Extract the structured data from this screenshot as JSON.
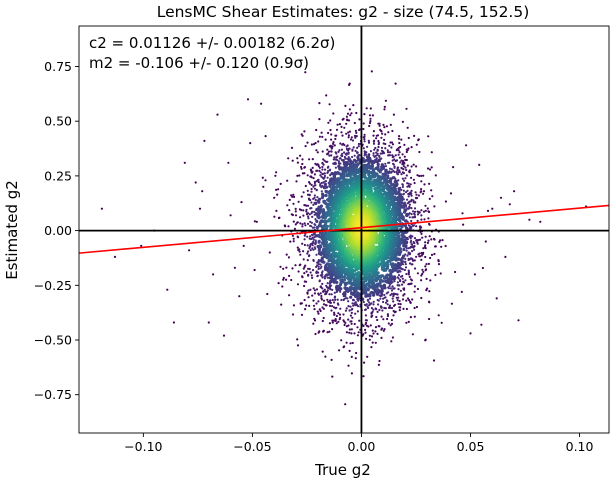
{
  "chart_data": {
    "type": "scatter",
    "title": "LensMC Shear Estimates: g2  - size (74.5, 152.5)",
    "xlabel": "True g2",
    "ylabel": "Estimated g2",
    "xlim": [
      -0.1295,
      0.1135
    ],
    "ylim": [
      -0.925,
      0.935
    ],
    "xticks": [
      -0.1,
      -0.05,
      0.0,
      0.05,
      0.1
    ],
    "xtick_labels": [
      "−0.10",
      "−0.05",
      "0.00",
      "0.05",
      "0.10"
    ],
    "yticks": [
      -0.75,
      -0.5,
      -0.25,
      0.0,
      0.25,
      0.5,
      0.75
    ],
    "ytick_labels": [
      "−0.75",
      "−0.50",
      "−0.25",
      "0.00",
      "0.25",
      "0.50",
      "0.75"
    ],
    "grid": false,
    "annotations": [
      "c2 = 0.01126 +/- 0.00182 (6.2σ)",
      "m2 = -0.106 +/- 0.120 (0.9σ)"
    ],
    "reference_lines": {
      "vertical_x": 0.0,
      "horizontal_y": 0.0,
      "color": "#000000"
    },
    "fit_line": {
      "color": "#ff0000",
      "x": [
        -0.1295,
        0.1135
      ],
      "y": [
        -0.103,
        0.115
      ]
    },
    "colormap": "viridis",
    "point_color_low": "#440154",
    "point_color_high": "#fde725",
    "core_points": {
      "x_std": 0.013,
      "y_std": 0.2,
      "count": 5200
    },
    "outlier_points": {
      "x": [
        -0.119,
        -0.113,
        -0.101,
        -0.095,
        -0.089,
        -0.086,
        -0.081,
        -0.079,
        -0.076,
        -0.074,
        -0.073,
        -0.072,
        -0.07,
        -0.068,
        -0.066,
        -0.063,
        -0.061,
        -0.06,
        -0.058,
        -0.056,
        -0.055,
        -0.054,
        -0.052,
        -0.051,
        -0.049,
        -0.048,
        -0.046,
        -0.045,
        -0.044,
        -0.042,
        -0.04,
        -0.038,
        -0.035,
        0.042,
        0.046,
        0.048,
        0.05,
        0.052,
        0.054,
        0.055,
        0.057,
        0.058,
        0.06,
        0.062,
        0.064,
        0.066,
        0.068,
        0.07,
        0.072,
        0.077,
        0.082,
        0.103
      ],
      "y": [
        0.1,
        -0.12,
        -0.07,
        0.0,
        -0.27,
        -0.42,
        0.31,
        -0.09,
        0.22,
        0.1,
        0.18,
        0.41,
        -0.42,
        -0.2,
        0.53,
        -0.48,
        0.31,
        0.07,
        -0.17,
        -0.3,
        0.13,
        -0.07,
        0.6,
        0.4,
        -0.18,
        0.04,
        0.58,
        0.2,
        0.23,
        -0.1,
        0.15,
        -0.24,
        0.02,
        0.29,
        -0.28,
        0.39,
        -0.47,
        -0.2,
        0.3,
        -0.43,
        -0.05,
        0.09,
        0.1,
        -0.31,
        0.15,
        -0.12,
        0.12,
        0.18,
        -0.41,
        0.05,
        0.04,
        0.11
      ]
    }
  }
}
